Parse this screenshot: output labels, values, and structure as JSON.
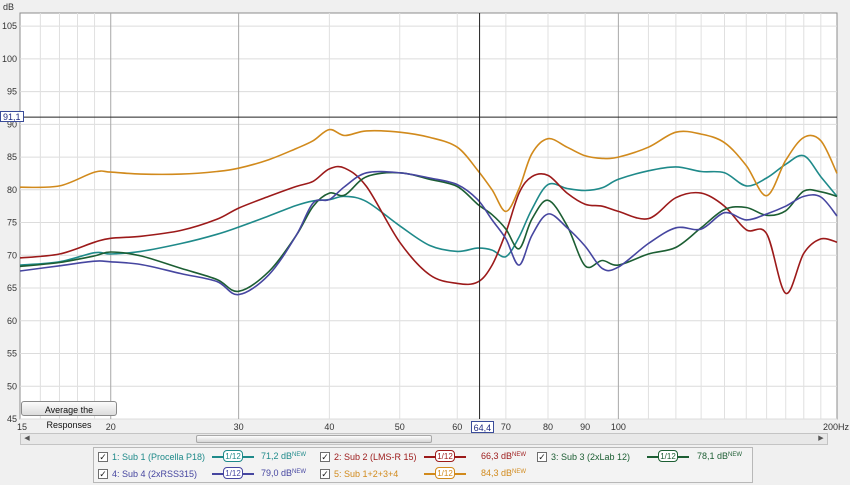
{
  "chart_data": {
    "type": "line",
    "ylabel": "dB",
    "xunit": "Hz",
    "xscale": "log",
    "xlim": [
      15,
      200
    ],
    "ylim": [
      45,
      107
    ],
    "x_ticks": [
      15,
      20,
      30,
      40,
      50,
      60,
      70,
      80,
      90,
      100,
      200
    ],
    "x_tick_labels": [
      "15",
      "20",
      "30",
      "40",
      "50",
      "60",
      "70",
      "80",
      "90",
      "100",
      "200Hz"
    ],
    "y_ticks": [
      45,
      50,
      55,
      60,
      65,
      70,
      75,
      80,
      85,
      90,
      95,
      100,
      105
    ],
    "grid": true,
    "cursor": {
      "x": 64.4,
      "x_label": "64,4",
      "y": 91.1,
      "y_label": "91,1"
    },
    "x": [
      15,
      17,
      19,
      20,
      22,
      25,
      28,
      30,
      33,
      36,
      38,
      40,
      42,
      45,
      50,
      55,
      60,
      64,
      67,
      70,
      73,
      76,
      80,
      85,
      90,
      95,
      100,
      110,
      120,
      130,
      140,
      150,
      160,
      170,
      180,
      190,
      200
    ],
    "series": [
      {
        "name": "1: Sub 1 (Procella P18)",
        "color": "#1f8a8a",
        "values": [
          68.5,
          69,
          70.4,
          70.2,
          70.6,
          71.8,
          73.2,
          74.3,
          76.0,
          77.6,
          78.3,
          78.5,
          79.0,
          78.2,
          74.5,
          71.5,
          70.6,
          71.1,
          70.8,
          69.8,
          72.8,
          77.0,
          80.8,
          80.2,
          79.9,
          80.3,
          81.6,
          82.9,
          83.5,
          82.8,
          82.6,
          80.6,
          81.8,
          83.9,
          85.2,
          82.0,
          79.0
        ]
      },
      {
        "name": "2: Sub 2 (LMS-R 15)",
        "color": "#9c1a1a",
        "values": [
          69.6,
          70.2,
          72.0,
          72.6,
          72.9,
          73.8,
          75.5,
          77.2,
          79.0,
          80.5,
          81.3,
          83.2,
          83.3,
          80.5,
          72.0,
          67.0,
          65.7,
          65.9,
          68.5,
          73.5,
          79.5,
          82.0,
          82.2,
          79.5,
          77.8,
          77.5,
          76.7,
          75.6,
          78.8,
          79.5,
          77.5,
          73.9,
          73.3,
          64.2,
          70.3,
          72.5,
          72.0
        ]
      },
      {
        "name": "3: Sub 3 (2xLab 12)",
        "color": "#1c5e33",
        "values": [
          68.3,
          68.9,
          69.9,
          70.5,
          69.9,
          68.0,
          66.3,
          64.5,
          67.5,
          73.0,
          77.5,
          79.5,
          79.2,
          82.0,
          82.6,
          81.6,
          80.5,
          77.8,
          76.2,
          74.0,
          71.0,
          75.5,
          78.4,
          74.5,
          68.4,
          69.2,
          68.5,
          70.2,
          71.2,
          74.2,
          77.0,
          77.3,
          76.1,
          76.8,
          79.8,
          79.7,
          79.0
        ]
      },
      {
        "name": "4: Sub 4 (2xRSS315)",
        "color": "#4646a0",
        "values": [
          67.6,
          68.4,
          69.1,
          69.0,
          68.6,
          67.2,
          66.0,
          64.0,
          67.0,
          73.0,
          78.0,
          78.5,
          80.5,
          82.6,
          82.6,
          81.8,
          80.8,
          78.5,
          75.4,
          72.5,
          68.5,
          73.0,
          76.3,
          74.2,
          71.4,
          68.0,
          68.2,
          71.8,
          74.2,
          74.0,
          76.5,
          75.4,
          76.3,
          77.5,
          79.0,
          78.9,
          76.0
        ]
      },
      {
        "name": "5: Sub 1+2+3+4",
        "color": "#d18a1c",
        "values": [
          80.4,
          80.6,
          82.7,
          82.7,
          82.4,
          82.4,
          82.8,
          83.3,
          84.6,
          86.3,
          87.5,
          89.2,
          88.3,
          89.0,
          88.8,
          88.0,
          86.5,
          83.0,
          80.0,
          76.7,
          80.2,
          85.5,
          87.8,
          86.5,
          85.2,
          84.8,
          85.0,
          86.5,
          88.8,
          88.5,
          87.2,
          83.7,
          79.1,
          84.5,
          88.0,
          87.5,
          82.5
        ]
      }
    ]
  },
  "controls": {
    "average_button": "Average the Responses",
    "smoothing_label": "1/12"
  },
  "legend": [
    {
      "name": "1: Sub 1 (Procella P18)",
      "value": "71,2 dB",
      "new": "NEW",
      "color": "#1f8a8a"
    },
    {
      "name": "2: Sub 2 (LMS-R 15)",
      "value": "66,3 dB",
      "new": "NEW",
      "color": "#9c1a1a"
    },
    {
      "name": "3: Sub 3 (2xLab 12)",
      "value": "78,1 dB",
      "new": "NEW",
      "color": "#1c5e33"
    },
    {
      "name": "4: Sub 4 (2xRSS315)",
      "value": "79,0 dB",
      "new": "NEW",
      "color": "#4646a0"
    },
    {
      "name": "5: Sub 1+2+3+4",
      "value": "84,3 dB",
      "new": "NEW",
      "color": "#d18a1c"
    }
  ]
}
